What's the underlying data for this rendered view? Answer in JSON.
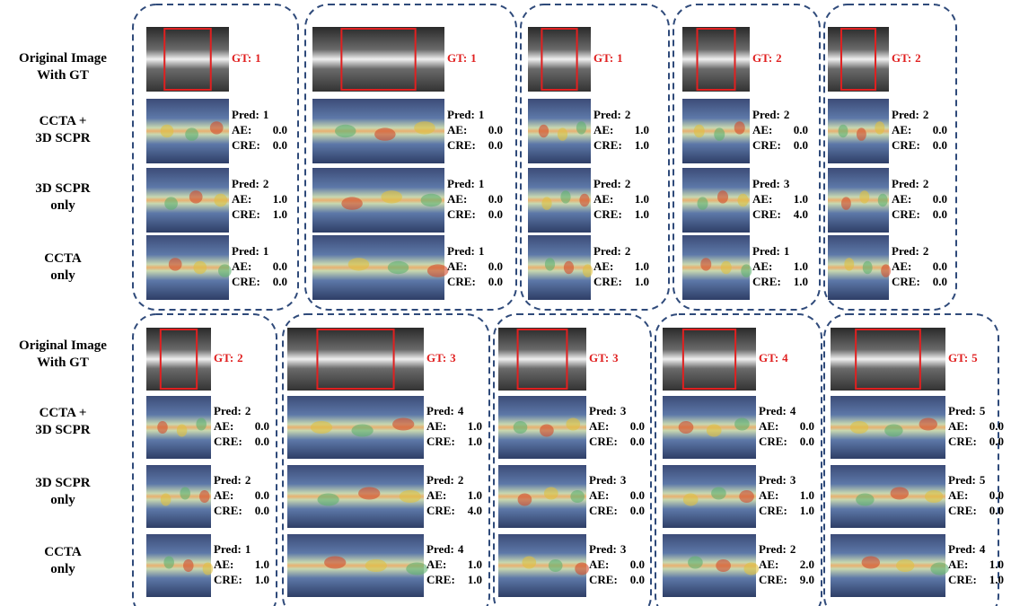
{
  "row_labels": [
    [
      "Original Image",
      "With GT"
    ],
    [
      "CCTA +",
      "3D SCPR"
    ],
    [
      "3D SCPR",
      "only"
    ],
    [
      "CCTA",
      "only"
    ]
  ],
  "labels": {
    "gt": "GT:",
    "pred": "Pred:",
    "ae": "AE:",
    "cre": "CRE:"
  },
  "panels": [
    {
      "gt": "1",
      "results": [
        {
          "pred": "1",
          "ae": "0.0",
          "cre": "0.0"
        },
        {
          "pred": "2",
          "ae": "1.0",
          "cre": "1.0"
        },
        {
          "pred": "1",
          "ae": "0.0",
          "cre": "0.0"
        }
      ]
    },
    {
      "gt": "1",
      "results": [
        {
          "pred": "1",
          "ae": "0.0",
          "cre": "0.0"
        },
        {
          "pred": "1",
          "ae": "0.0",
          "cre": "0.0"
        },
        {
          "pred": "1",
          "ae": "0.0",
          "cre": "0.0"
        }
      ]
    },
    {
      "gt": "1",
      "results": [
        {
          "pred": "2",
          "ae": "1.0",
          "cre": "1.0"
        },
        {
          "pred": "2",
          "ae": "1.0",
          "cre": "1.0"
        },
        {
          "pred": "2",
          "ae": "1.0",
          "cre": "1.0"
        }
      ]
    },
    {
      "gt": "2",
      "results": [
        {
          "pred": "2",
          "ae": "0.0",
          "cre": "0.0"
        },
        {
          "pred": "3",
          "ae": "1.0",
          "cre": "4.0"
        },
        {
          "pred": "1",
          "ae": "1.0",
          "cre": "1.0"
        }
      ]
    },
    {
      "gt": "2",
      "results": [
        {
          "pred": "2",
          "ae": "0.0",
          "cre": "0.0"
        },
        {
          "pred": "2",
          "ae": "0.0",
          "cre": "0.0"
        },
        {
          "pred": "2",
          "ae": "0.0",
          "cre": "0.0"
        }
      ]
    },
    {
      "gt": "2",
      "results": [
        {
          "pred": "2",
          "ae": "0.0",
          "cre": "0.0"
        },
        {
          "pred": "2",
          "ae": "0.0",
          "cre": "0.0"
        },
        {
          "pred": "1",
          "ae": "1.0",
          "cre": "1.0"
        }
      ]
    },
    {
      "gt": "3",
      "results": [
        {
          "pred": "4",
          "ae": "1.0",
          "cre": "1.0"
        },
        {
          "pred": "2",
          "ae": "1.0",
          "cre": "4.0"
        },
        {
          "pred": "4",
          "ae": "1.0",
          "cre": "1.0"
        }
      ]
    },
    {
      "gt": "3",
      "results": [
        {
          "pred": "3",
          "ae": "0.0",
          "cre": "0.0"
        },
        {
          "pred": "3",
          "ae": "0.0",
          "cre": "0.0"
        },
        {
          "pred": "3",
          "ae": "0.0",
          "cre": "0.0"
        }
      ]
    },
    {
      "gt": "4",
      "results": [
        {
          "pred": "4",
          "ae": "0.0",
          "cre": "0.0"
        },
        {
          "pred": "3",
          "ae": "1.0",
          "cre": "1.0"
        },
        {
          "pred": "2",
          "ae": "2.0",
          "cre": "9.0"
        }
      ]
    },
    {
      "gt": "5",
      "results": [
        {
          "pred": "5",
          "ae": "0.0",
          "cre": "0.0"
        },
        {
          "pred": "5",
          "ae": "0.0",
          "cre": "0.0"
        },
        {
          "pred": "4",
          "ae": "1.0",
          "cre": "1.0"
        }
      ]
    }
  ]
}
